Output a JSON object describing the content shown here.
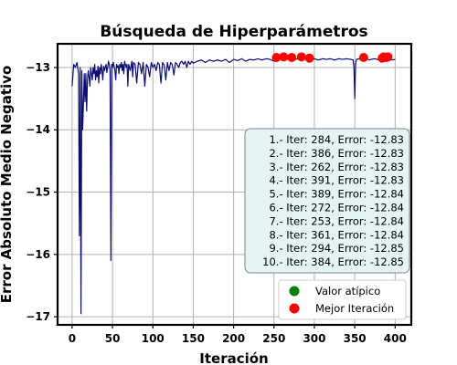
{
  "chart_data": {
    "type": "line",
    "title": "Búsqueda de Hiperparámetros",
    "xlabel": "Iteración",
    "ylabel": "Error Absoluto Medio Negativo",
    "xlim": [
      -18,
      420
    ],
    "ylim": [
      -17.13,
      -12.62
    ],
    "xticks": [
      0,
      50,
      100,
      150,
      200,
      250,
      300,
      350,
      400
    ],
    "yticks": [
      -17,
      -16,
      -15,
      -14,
      -13
    ],
    "grid": true,
    "colors": {
      "line": "#0d0d73",
      "best": "#ff0000",
      "outlier": "#008000",
      "info_bg": "#e6f3f3",
      "info_border": "#7a8a8f"
    },
    "series": [
      {
        "role": "error-line",
        "x": [
          0,
          2,
          4,
          6,
          8,
          9,
          10,
          11,
          12,
          13,
          14,
          15,
          16,
          17,
          18,
          19,
          20,
          21,
          22,
          23,
          24,
          25,
          26,
          27,
          28,
          29,
          30,
          31,
          32,
          33,
          34,
          35,
          36,
          37,
          38,
          39,
          40,
          41,
          42,
          43,
          44,
          45,
          46,
          47,
          48,
          49,
          50,
          51,
          52,
          53,
          54,
          55,
          56,
          57,
          58,
          59,
          60,
          61,
          62,
          63,
          64,
          65,
          66,
          67,
          68,
          69,
          70,
          72,
          74,
          75,
          76,
          78,
          80,
          82,
          84,
          86,
          88,
          90,
          92,
          94,
          96,
          98,
          100,
          102,
          104,
          106,
          108,
          110,
          112,
          114,
          116,
          118,
          120,
          122,
          124,
          126,
          128,
          130,
          132,
          134,
          136,
          138,
          140,
          142,
          144,
          146,
          148,
          150,
          155,
          160,
          165,
          170,
          175,
          180,
          185,
          190,
          195,
          200,
          205,
          210,
          215,
          220,
          225,
          230,
          235,
          240,
          245,
          250,
          253,
          255,
          258,
          260,
          262,
          265,
          268,
          270,
          272,
          275,
          278,
          280,
          282,
          284,
          286,
          288,
          290,
          292,
          294,
          296,
          298,
          300,
          305,
          310,
          315,
          320,
          325,
          330,
          335,
          340,
          345,
          348,
          349,
          350,
          351,
          352,
          355,
          358,
          360,
          361,
          362,
          365,
          368,
          370,
          375,
          380,
          384,
          385,
          386,
          388,
          389,
          390,
          391,
          393,
          395,
          400
        ],
        "y": [
          -13.3,
          -12.95,
          -13.0,
          -12.92,
          -13.1,
          -15.7,
          -13.0,
          -16.95,
          -13.05,
          -14.0,
          -13.6,
          -13.1,
          -13.55,
          -13.1,
          -13.7,
          -13.2,
          -13.05,
          -13.15,
          -13.3,
          -13.0,
          -13.1,
          -13.2,
          -13.0,
          -13.1,
          -12.95,
          -13.2,
          -13.05,
          -13.15,
          -12.98,
          -13.25,
          -13.0,
          -13.1,
          -12.95,
          -13.05,
          -13.2,
          -12.98,
          -13.05,
          -13.0,
          -12.95,
          -13.08,
          -13.0,
          -12.9,
          -12.95,
          -13.05,
          -16.1,
          -12.95,
          -13.0,
          -12.92,
          -12.98,
          -13.05,
          -13.2,
          -12.95,
          -13.0,
          -12.97,
          -13.1,
          -12.95,
          -13.0,
          -12.92,
          -13.05,
          -12.95,
          -13.1,
          -12.9,
          -12.95,
          -13.0,
          -12.95,
          -13.3,
          -12.95,
          -13.05,
          -12.9,
          -13.15,
          -12.92,
          -12.95,
          -13.25,
          -12.92,
          -12.95,
          -13.1,
          -12.92,
          -13.3,
          -12.95,
          -13.0,
          -13.15,
          -12.92,
          -13.0,
          -12.95,
          -13.05,
          -12.92,
          -12.95,
          -13.25,
          -12.92,
          -12.96,
          -13.2,
          -12.92,
          -13.05,
          -12.92,
          -12.95,
          -13.12,
          -12.92,
          -12.95,
          -13.0,
          -12.92,
          -12.9,
          -12.95,
          -12.9,
          -13.0,
          -12.9,
          -12.95,
          -12.9,
          -12.93,
          -12.9,
          -12.88,
          -12.92,
          -12.88,
          -12.9,
          -12.88,
          -12.9,
          -12.87,
          -12.92,
          -12.87,
          -12.89,
          -12.86,
          -12.9,
          -12.87,
          -12.88,
          -12.86,
          -12.88,
          -12.86,
          -12.87,
          -12.9,
          -12.84,
          -12.86,
          -12.84,
          -12.85,
          -12.83,
          -12.86,
          -12.85,
          -12.87,
          -12.84,
          -12.86,
          -12.87,
          -12.85,
          -12.86,
          -12.83,
          -12.87,
          -12.85,
          -12.86,
          -12.87,
          -12.85,
          -12.86,
          -12.87,
          -12.86,
          -12.88,
          -12.86,
          -12.87,
          -12.86,
          -12.88,
          -12.86,
          -12.87,
          -12.86,
          -12.87,
          -12.88,
          -13.0,
          -13.5,
          -12.95,
          -12.87,
          -12.86,
          -12.88,
          -12.87,
          -12.84,
          -12.87,
          -12.86,
          -12.88,
          -12.87,
          -12.86,
          -12.88,
          -12.84,
          -12.85,
          -12.83,
          -12.86,
          -12.84,
          -12.86,
          -12.83,
          -12.86,
          -12.88,
          -12.87
        ]
      },
      {
        "name": "Mejor Iteración",
        "role": "best-points",
        "x": [
          284,
          386,
          262,
          391,
          389,
          272,
          253,
          361,
          294,
          384
        ],
        "y": [
          -12.83,
          -12.83,
          -12.83,
          -12.83,
          -12.84,
          -12.84,
          -12.84,
          -12.84,
          -12.85,
          -12.85
        ]
      },
      {
        "name": "Valor atípico",
        "role": "outliers",
        "x": [],
        "y": []
      }
    ],
    "info_box_lines": [
      "1.- Iter: 284, Error: -12.83",
      "2.- Iter: 386, Error: -12.83",
      "3.- Iter: 262, Error: -12.83",
      "4.- Iter: 391, Error: -12.83",
      "5.- Iter: 389, Error: -12.84",
      "6.- Iter: 272, Error: -12.84",
      "7.- Iter: 253, Error: -12.84",
      "8.- Iter: 361, Error: -12.84",
      "9.- Iter: 294, Error: -12.85",
      "10.- Iter: 384, Error: -12.85"
    ],
    "legend": {
      "placement": "lower-right",
      "entries": [
        "Valor atípico",
        "Mejor Iteración"
      ]
    }
  }
}
